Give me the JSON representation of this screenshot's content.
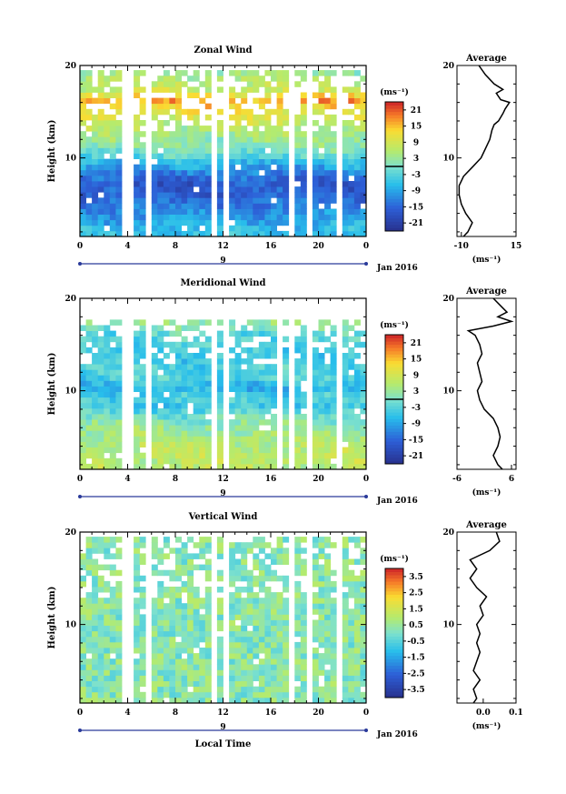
{
  "chart_data": [
    {
      "type": "heatmap",
      "title": "Zonal Wind",
      "ylabel": "Height (km)",
      "x_ticks": [
        "0",
        "4",
        "8",
        "12",
        "16",
        "20",
        "0"
      ],
      "y_ticks": [
        "10",
        "20"
      ],
      "xlim": [
        0,
        24
      ],
      "ylim": [
        1.5,
        20
      ],
      "date_label": "9",
      "date_suffix": "Jan 2016",
      "colorbar": {
        "unit": "(ms⁻¹)",
        "ticks": [
          "21",
          "15",
          "9",
          "3",
          "-3",
          "-9",
          "-15",
          "-21"
        ],
        "range": [
          -24,
          24
        ],
        "zero_line": true
      },
      "profile": {
        "title": "Average",
        "x_ticks": [
          "-10",
          "15"
        ],
        "xlim": [
          -12,
          15
        ],
        "unit": "(ms⁻¹)",
        "points": [
          [
            -9,
            1.5
          ],
          [
            -7,
            2
          ],
          [
            -5,
            3
          ],
          [
            -8,
            4
          ],
          [
            -10,
            5
          ],
          [
            -11,
            6
          ],
          [
            -11,
            7
          ],
          [
            -9,
            8
          ],
          [
            -5,
            9
          ],
          [
            -1,
            10
          ],
          [
            1,
            11
          ],
          [
            3,
            12
          ],
          [
            4,
            13
          ],
          [
            5,
            13.6
          ],
          [
            7,
            14
          ],
          [
            9,
            14.8
          ],
          [
            10,
            15.3
          ],
          [
            12,
            16
          ],
          [
            8,
            16.3
          ],
          [
            6,
            17
          ],
          [
            9,
            17.4
          ],
          [
            5,
            18
          ],
          [
            1,
            19
          ],
          [
            -2,
            20
          ]
        ]
      },
      "gaps": [
        [
          3.7,
          4.3
        ],
        [
          5.5,
          6.1
        ],
        [
          10.8,
          11.3
        ],
        [
          12.0,
          12.4
        ],
        [
          17.6,
          18.0
        ],
        [
          19.2,
          19.7
        ],
        [
          21.3,
          21.9
        ]
      ],
      "cell_h": 0.6,
      "field_base": 1,
      "top_data": 19,
      "layers": [
        [
          0,
          -1
        ],
        [
          1.5,
          -6
        ],
        [
          3,
          -9
        ],
        [
          5,
          -14
        ],
        [
          7,
          -17
        ],
        [
          9,
          -8
        ],
        [
          10,
          -2
        ],
        [
          11,
          2
        ],
        [
          13,
          6
        ],
        [
          15,
          12
        ],
        [
          16,
          17
        ],
        [
          17,
          8
        ],
        [
          18,
          6
        ],
        [
          19,
          3
        ],
        [
          20,
          2
        ]
      ]
    },
    {
      "type": "heatmap",
      "title": "Meridional Wind",
      "ylabel": "Height (km)",
      "x_ticks": [
        "0",
        "4",
        "8",
        "12",
        "16",
        "20",
        "0"
      ],
      "y_ticks": [
        "10",
        "20"
      ],
      "xlim": [
        0,
        24
      ],
      "ylim": [
        1.5,
        20
      ],
      "date_label": "9",
      "date_suffix": "Jan 2016",
      "colorbar": {
        "unit": "(ms⁻¹)",
        "ticks": [
          "21",
          "15",
          "9",
          "3",
          "-3",
          "-9",
          "-15",
          "-21"
        ],
        "range": [
          -24,
          24
        ],
        "zero_line": true
      },
      "profile": {
        "title": "Average",
        "x_ticks": [
          "-6",
          "6"
        ],
        "xlim": [
          -6,
          7
        ],
        "unit": "(ms⁻¹)",
        "points": [
          [
            4,
            1.5
          ],
          [
            3,
            2
          ],
          [
            2,
            3
          ],
          [
            3,
            4
          ],
          [
            3.5,
            5
          ],
          [
            3,
            6
          ],
          [
            2,
            7
          ],
          [
            0,
            8
          ],
          [
            -1,
            9
          ],
          [
            -1.5,
            10
          ],
          [
            -0.5,
            11
          ],
          [
            -1,
            12
          ],
          [
            -1.5,
            13
          ],
          [
            -0.5,
            14
          ],
          [
            -1,
            15
          ],
          [
            -2,
            16
          ],
          [
            -3.5,
            16.5
          ],
          [
            2,
            17
          ],
          [
            6,
            17.5
          ],
          [
            3,
            18
          ],
          [
            5,
            18.5
          ],
          [
            4,
            19
          ],
          [
            2,
            20
          ]
        ]
      },
      "gaps": [
        [
          3.7,
          4.3
        ],
        [
          5.5,
          6.1
        ],
        [
          11.0,
          11.5
        ],
        [
          12.0,
          12.4
        ],
        [
          16.6,
          17.0
        ],
        [
          17.5,
          18.0
        ],
        [
          19.2,
          19.7
        ],
        [
          21.3,
          21.9
        ]
      ],
      "cell_h": 0.6,
      "field_base": 1,
      "top_data": 17.2,
      "layers": [
        [
          0,
          6
        ],
        [
          2,
          7
        ],
        [
          4,
          6
        ],
        [
          6,
          3
        ],
        [
          7,
          -1
        ],
        [
          8,
          -5
        ],
        [
          9,
          -3
        ],
        [
          10,
          -8
        ],
        [
          11,
          -4
        ],
        [
          12,
          -3
        ],
        [
          13,
          -5
        ],
        [
          14,
          -4
        ],
        [
          15,
          -3
        ],
        [
          16,
          -2
        ],
        [
          17,
          3
        ],
        [
          18,
          6
        ],
        [
          20,
          5
        ]
      ]
    },
    {
      "type": "heatmap",
      "title": "Vertical Wind",
      "ylabel": "Height (km)",
      "xlabel": "Local Time",
      "x_ticks": [
        "0",
        "4",
        "8",
        "12",
        "16",
        "20",
        "0"
      ],
      "y_ticks": [
        "10",
        "20"
      ],
      "xlim": [
        0,
        24
      ],
      "ylim": [
        1.5,
        20
      ],
      "date_label": "9",
      "date_suffix": "Jan 2016",
      "colorbar": {
        "unit": "(ms⁻¹)",
        "ticks": [
          "3.5",
          "2.5",
          "1.5",
          "0.5",
          "-0.5",
          "-1.5",
          "-2.5",
          "-3.5"
        ],
        "range": [
          -4,
          4
        ],
        "zero_line": false
      },
      "profile": {
        "title": "Average",
        "x_ticks": [
          "0.0",
          "0.1"
        ],
        "xlim": [
          -0.08,
          0.1
        ],
        "unit": "(ms⁻¹)",
        "points": [
          [
            -0.03,
            1.5
          ],
          [
            -0.02,
            2
          ],
          [
            -0.03,
            3
          ],
          [
            -0.01,
            4
          ],
          [
            -0.03,
            5
          ],
          [
            -0.02,
            6
          ],
          [
            -0.01,
            7
          ],
          [
            -0.02,
            8
          ],
          [
            -0.01,
            9
          ],
          [
            -0.02,
            10
          ],
          [
            0.0,
            11
          ],
          [
            -0.01,
            12
          ],
          [
            0.01,
            13
          ],
          [
            -0.02,
            14
          ],
          [
            -0.04,
            15
          ],
          [
            -0.02,
            16
          ],
          [
            -0.04,
            17
          ],
          [
            0.02,
            18
          ],
          [
            0.05,
            19
          ],
          [
            0.04,
            20
          ]
        ]
      },
      "gaps": [
        [
          3.7,
          4.3
        ],
        [
          5.5,
          6.1
        ],
        [
          10.8,
          11.3
        ],
        [
          12.0,
          12.4
        ],
        [
          17.6,
          18.0
        ],
        [
          19.2,
          19.7
        ],
        [
          21.3,
          21.9
        ]
      ],
      "cell_h": 0.6,
      "field_base": 0,
      "top_data": 19.3,
      "layers": [
        [
          0,
          0.2
        ],
        [
          5,
          0.1
        ],
        [
          10,
          0.3
        ],
        [
          15,
          0.1
        ],
        [
          20,
          0.2
        ]
      ]
    }
  ]
}
